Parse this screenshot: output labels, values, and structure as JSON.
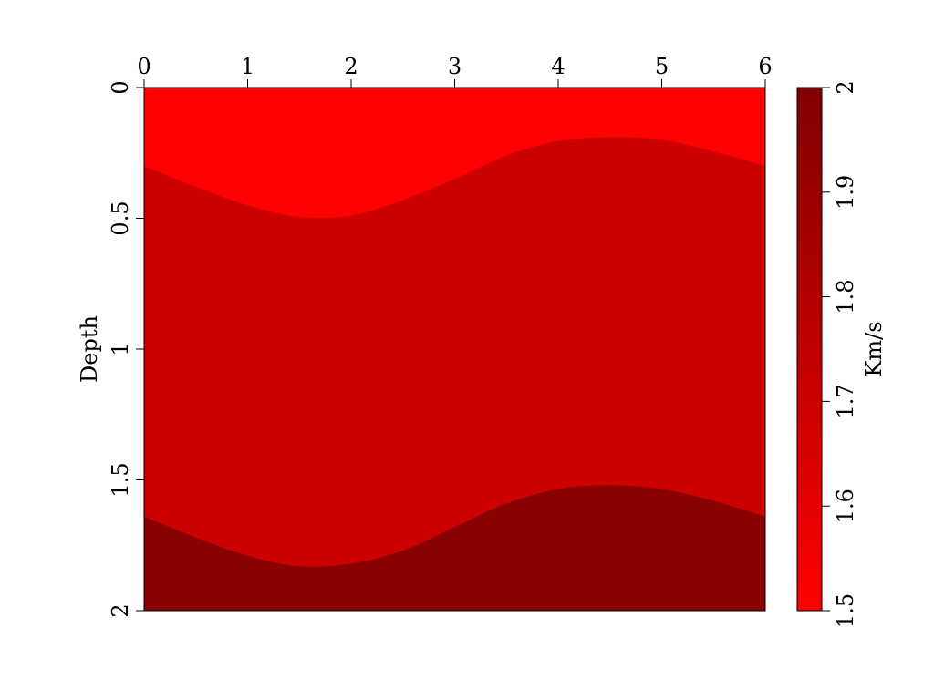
{
  "chart_data": {
    "type": "heatmap",
    "title": "",
    "xlabel": "",
    "ylabel": "Depth",
    "xlim": [
      0,
      6
    ],
    "ylim": [
      0,
      2
    ],
    "y_inverted": true,
    "x_axis_position": "top",
    "x_ticks": [
      "0",
      "1",
      "2",
      "3",
      "4",
      "5",
      "6"
    ],
    "y_ticks": [
      "0",
      "0.5",
      "1",
      "1.5",
      "2"
    ],
    "grid": false,
    "layers": [
      {
        "velocity": 1.5,
        "color": "#ff0000",
        "bottom_boundary": [
          [
            0,
            0.3
          ],
          [
            0.5,
            0.38
          ],
          [
            1,
            0.45
          ],
          [
            1.5,
            0.495
          ],
          [
            2,
            0.49
          ],
          [
            2.5,
            0.43
          ],
          [
            3,
            0.35
          ],
          [
            3.5,
            0.26
          ],
          [
            4,
            0.205
          ],
          [
            4.5,
            0.19
          ],
          [
            5,
            0.2
          ],
          [
            5.5,
            0.245
          ],
          [
            6,
            0.3
          ]
        ]
      },
      {
        "velocity": 1.7,
        "color": "#cc0000",
        "bottom_boundary": [
          [
            0,
            1.64
          ],
          [
            0.5,
            1.72
          ],
          [
            1,
            1.79
          ],
          [
            1.5,
            1.83
          ],
          [
            2,
            1.82
          ],
          [
            2.5,
            1.77
          ],
          [
            3,
            1.68
          ],
          [
            3.5,
            1.59
          ],
          [
            4,
            1.535
          ],
          [
            4.5,
            1.52
          ],
          [
            5,
            1.535
          ],
          [
            5.5,
            1.58
          ],
          [
            6,
            1.64
          ]
        ]
      },
      {
        "velocity": 1.98,
        "color": "#880000",
        "bottom_boundary": [
          [
            0,
            2
          ],
          [
            6,
            2
          ]
        ]
      }
    ],
    "colorbar": {
      "label": "Km/s",
      "range": [
        1.5,
        2
      ],
      "ticks": [
        "1.5",
        "1.6",
        "1.7",
        "1.8",
        "1.9",
        "2"
      ],
      "color_low": "#ff0000",
      "color_high": "#800000",
      "placement": "right"
    }
  }
}
